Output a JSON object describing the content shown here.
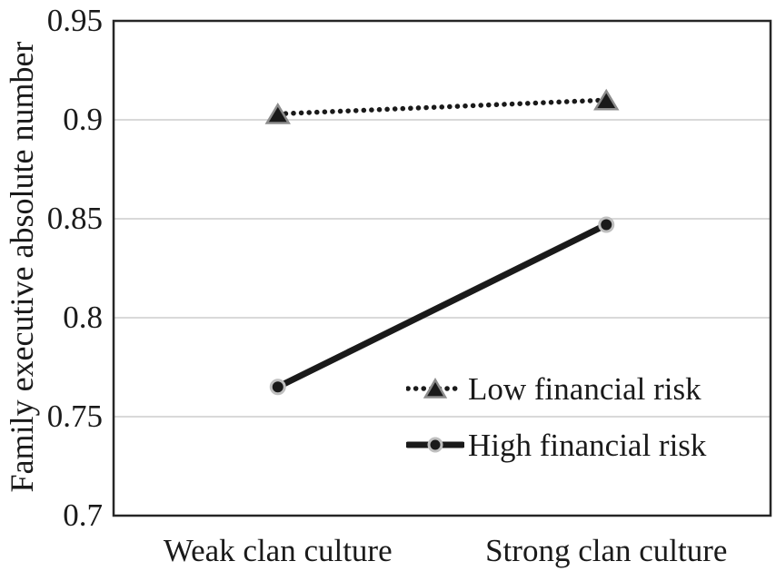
{
  "chart_data": {
    "type": "line",
    "title": "",
    "ylabel": "Family executive absolute number",
    "xlabel": "",
    "ylim": [
      0.7,
      0.95
    ],
    "grid": "horizontal",
    "categories": [
      "Weak clan culture",
      "Strong clan culture"
    ],
    "series": [
      {
        "name": "Low financial risk",
        "values": [
          0.903,
          0.91
        ],
        "line_style": "dotted",
        "marker": "triangle"
      },
      {
        "name": "High financial risk",
        "values": [
          0.765,
          0.847
        ],
        "line_style": "solid",
        "marker": "circle"
      }
    ],
    "yticks": [
      {
        "value": 0.95,
        "label": "0.95"
      },
      {
        "value": 0.9,
        "label": "0.9"
      },
      {
        "value": 0.85,
        "label": "0.85"
      },
      {
        "value": 0.8,
        "label": "0.8"
      },
      {
        "value": 0.75,
        "label": "0.75"
      },
      {
        "value": 0.7,
        "label": "0.7"
      }
    ],
    "legend": {
      "position": "inside-lower-right",
      "entries": [
        "Low financial risk",
        "High financial risk"
      ]
    },
    "colors": {
      "text": "#1a1a1a",
      "line": "#1a1a1a",
      "marker_fill": "#1a1a1a",
      "triangle_edge": "#8c8c8c",
      "circle_edge": "#bfbfbf",
      "gridline": "#d9d9d9",
      "plot_border": "#262626",
      "background": "#ffffff"
    }
  }
}
